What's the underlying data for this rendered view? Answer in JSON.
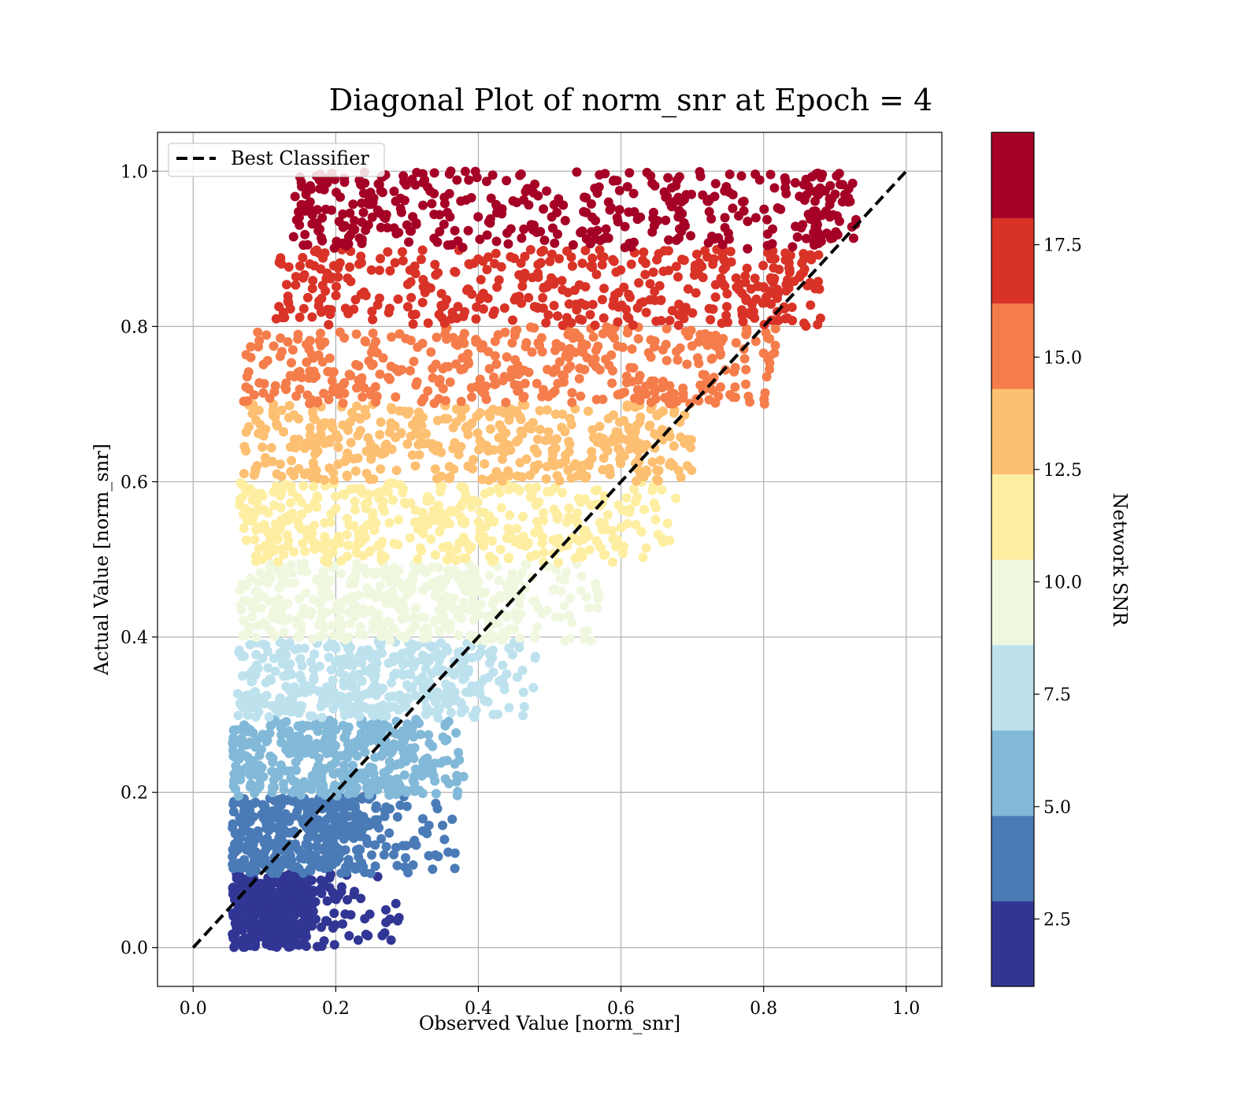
{
  "chart_data": {
    "type": "scatter",
    "title": "Diagonal Plot of norm_snr at Epoch = 4",
    "xlabel": "Observed Value [norm_snr]",
    "ylabel": "Actual Value [norm_snr]",
    "xlim": [
      -0.05,
      1.05
    ],
    "ylim": [
      -0.05,
      1.05
    ],
    "x_ticks": [
      "0.0",
      "0.2",
      "0.4",
      "0.6",
      "0.8",
      "1.0"
    ],
    "y_ticks": [
      "0.0",
      "0.2",
      "0.4",
      "0.6",
      "0.8",
      "1.0"
    ],
    "grid": true,
    "legend": {
      "placement": "upper-left",
      "entries": [
        "Best Classifier"
      ]
    },
    "reference_line": {
      "name": "Best Classifier",
      "style": "dashed",
      "color": "#000000",
      "x": [
        0.0,
        1.0
      ],
      "y": [
        0.0,
        1.0
      ]
    },
    "colorbar": {
      "label": "Network SNR",
      "range": [
        1.0,
        20.0
      ],
      "ticks": [
        "2.5",
        "5.0",
        "7.5",
        "10.0",
        "12.5",
        "15.0",
        "17.5"
      ],
      "bands": [
        {
          "from": 1.0,
          "to": 2.9,
          "color": "#313695"
        },
        {
          "from": 2.9,
          "to": 4.8,
          "color": "#4a7bb7"
        },
        {
          "from": 4.8,
          "to": 6.7,
          "color": "#83b9d8"
        },
        {
          "from": 6.7,
          "to": 8.6,
          "color": "#bde2ee"
        },
        {
          "from": 8.6,
          "to": 10.5,
          "color": "#eff8df"
        },
        {
          "from": 10.5,
          "to": 12.4,
          "color": "#feeea1"
        },
        {
          "from": 12.4,
          "to": 14.3,
          "color": "#fdbf71"
        },
        {
          "from": 14.3,
          "to": 16.2,
          "color": "#f57d4b"
        },
        {
          "from": 16.2,
          "to": 18.1,
          "color": "#d93328"
        },
        {
          "from": 18.1,
          "to": 20.0,
          "color": "#a50026"
        }
      ]
    },
    "bands": [
      {
        "ymin": 0.0,
        "ymax": 0.095,
        "xmin": 0.055,
        "xmax": 0.16,
        "tail": 0.29,
        "color": "#313695"
      },
      {
        "ymin": 0.095,
        "ymax": 0.195,
        "xmin": 0.055,
        "xmax": 0.24,
        "tail": 0.37,
        "color": "#4a7bb7"
      },
      {
        "ymin": 0.195,
        "ymax": 0.295,
        "xmin": 0.055,
        "xmax": 0.31,
        "tail": 0.38,
        "color": "#83b9d8"
      },
      {
        "ymin": 0.295,
        "ymax": 0.395,
        "xmin": 0.06,
        "xmax": 0.38,
        "tail": 0.48,
        "color": "#bde2ee"
      },
      {
        "ymin": 0.395,
        "ymax": 0.495,
        "xmin": 0.065,
        "xmax": 0.45,
        "tail": 0.57,
        "color": "#eff8df"
      },
      {
        "ymin": 0.495,
        "ymax": 0.6,
        "xmin": 0.065,
        "xmax": 0.54,
        "tail": 0.68,
        "color": "#feeea1"
      },
      {
        "ymin": 0.6,
        "ymax": 0.7,
        "xmin": 0.07,
        "xmax": 0.62,
        "tail": 0.7,
        "color": "#fdbf71"
      },
      {
        "ymin": 0.7,
        "ymax": 0.8,
        "xmin": 0.07,
        "xmax": 0.72,
        "tail": 0.82,
        "color": "#f57d4b"
      },
      {
        "ymin": 0.8,
        "ymax": 0.9,
        "xmin": 0.11,
        "xmax": 0.81,
        "tail": 0.88,
        "color": "#d93328"
      },
      {
        "ymin": 0.9,
        "ymax": 1.0,
        "xmin": 0.14,
        "xmax": 0.87,
        "tail": 0.93,
        "color": "#a50026"
      }
    ]
  }
}
